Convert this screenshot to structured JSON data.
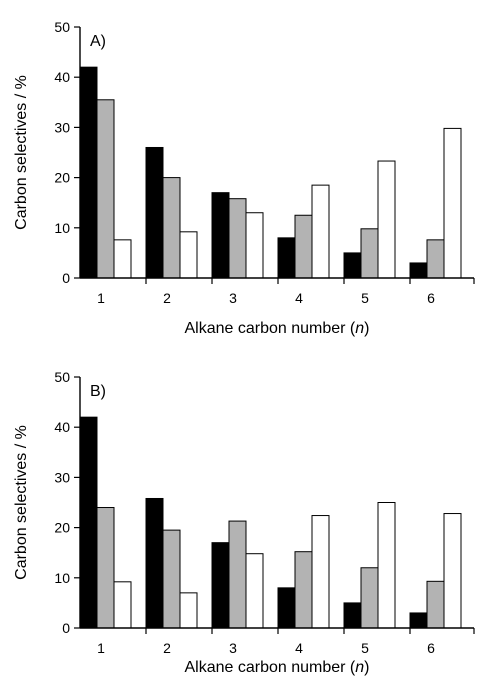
{
  "chart_data": [
    {
      "type": "bar",
      "panel_label": "A)",
      "categories": [
        "1",
        "2",
        "3",
        "4",
        "5",
        "6"
      ],
      "series": [
        {
          "color": "#000000",
          "values": [
            42,
            26,
            17,
            8,
            5,
            3
          ]
        },
        {
          "color": "#b3b3b3",
          "values": [
            35.5,
            20,
            15.8,
            12.5,
            9.8,
            7.6
          ]
        },
        {
          "color": "#ffffff",
          "values": [
            7.6,
            9.2,
            13,
            18.5,
            23.3,
            29.8
          ]
        }
      ],
      "xlabel_main": "Alkane carbon number (",
      "xlabel_var": "n",
      "xlabel_end": ")",
      "ylabel": "Carbon selectives / %",
      "ylim": [
        0,
        50
      ],
      "yticks": [
        "0",
        "10",
        "20",
        "30",
        "40",
        "50"
      ],
      "grid": false
    },
    {
      "type": "bar",
      "panel_label": "B)",
      "categories": [
        "1",
        "2",
        "3",
        "4",
        "5",
        "6"
      ],
      "series": [
        {
          "color": "#000000",
          "values": [
            42,
            25.8,
            17,
            8,
            5,
            3
          ]
        },
        {
          "color": "#b3b3b3",
          "values": [
            24,
            19.5,
            21.3,
            15.2,
            12,
            9.3
          ]
        },
        {
          "color": "#ffffff",
          "values": [
            9.2,
            7,
            14.8,
            22.4,
            25,
            22.8
          ]
        }
      ],
      "xlabel_main": "Alkane carbon number (",
      "xlabel_var": "n",
      "xlabel_end": ")",
      "ylabel": "Carbon selectives / %",
      "ylim": [
        0,
        50
      ],
      "yticks": [
        "0",
        "10",
        "20",
        "30",
        "40",
        "50"
      ],
      "grid": false
    }
  ]
}
